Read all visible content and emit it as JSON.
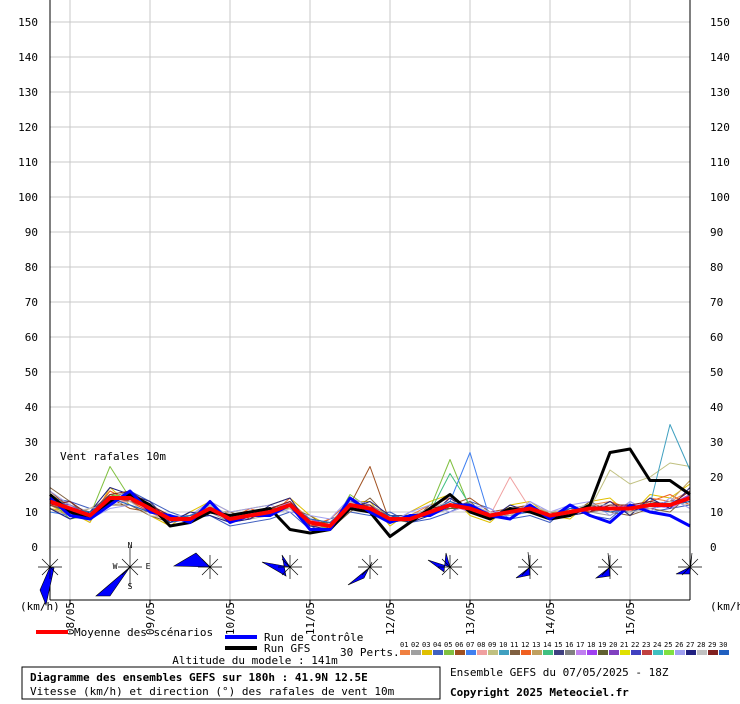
{
  "chart_data": {
    "type": "line",
    "annotation": "Vent rafales 10m",
    "y_unit_left": "(km/h)",
    "y_unit_right": "(km/h)",
    "compass": [
      "N",
      "W",
      "E",
      "S"
    ],
    "x": [
      0,
      6,
      12,
      18,
      24,
      30,
      36,
      42,
      48,
      54,
      60,
      66,
      72,
      78,
      84,
      90,
      96,
      102,
      108,
      114,
      120,
      126,
      132,
      138,
      144,
      150,
      156,
      162,
      168,
      174,
      180,
      186,
      192
    ],
    "xlim": [
      0,
      192
    ],
    "xticks": [
      {
        "value": 6,
        "label": "08/05"
      },
      {
        "value": 30,
        "label": "09/05"
      },
      {
        "value": 54,
        "label": "10/05"
      },
      {
        "value": 78,
        "label": "11/05"
      },
      {
        "value": 102,
        "label": "12/05"
      },
      {
        "value": 126,
        "label": "13/05"
      },
      {
        "value": 150,
        "label": "14/05"
      },
      {
        "value": 174,
        "label": "15/05"
      }
    ],
    "ylim": [
      0,
      150
    ],
    "yticks": [
      0,
      10,
      20,
      30,
      40,
      50,
      60,
      70,
      80,
      90,
      100,
      110,
      120,
      130,
      140,
      150
    ],
    "grid": true,
    "perts_label": "30 Perts.",
    "altitude": "Altitude du modele : 141m",
    "box_title": "Diagramme des ensembles GEFS sur 180h : 41.9N 12.5E",
    "box_subtitle": "Vitesse (km/h) et direction (°) des rafales de vent 10m",
    "run_info": "Ensemble GEFS du 07/05/2025 - 18Z",
    "copyright": "Copyright 2025 Meteociel.fr",
    "series": [
      {
        "name": "01",
        "color": "#f08040",
        "values": [
          12,
          9,
          8,
          16,
          13,
          10,
          7,
          9,
          12,
          9,
          10,
          11,
          13,
          8,
          5,
          14,
          12,
          7,
          9,
          12,
          14,
          10,
          8,
          11,
          12,
          10,
          9,
          12,
          13,
          10,
          14,
          13,
          16
        ]
      },
      {
        "name": "02",
        "color": "#a0a0a0",
        "values": [
          15,
          12,
          10,
          13,
          15,
          12,
          9,
          7,
          10,
          7,
          8,
          9,
          11,
          6,
          7,
          11,
          10,
          9,
          8,
          9,
          11,
          12,
          10,
          9,
          10,
          8,
          11,
          10,
          9,
          12,
          11,
          12,
          13
        ]
      },
      {
        "name": "03",
        "color": "#e0c000",
        "values": [
          11,
          10,
          7,
          17,
          12,
          9,
          6,
          10,
          13,
          10,
          11,
          12,
          14,
          9,
          6,
          13,
          13,
          6,
          10,
          13,
          15,
          9,
          7,
          12,
          13,
          9,
          8,
          13,
          14,
          9,
          15,
          14,
          18
        ]
      },
      {
        "name": "04",
        "color": "#4060c0",
        "values": [
          14,
          13,
          11,
          12,
          16,
          13,
          10,
          8,
          9,
          6,
          7,
          8,
          10,
          5,
          8,
          10,
          9,
          10,
          7,
          8,
          10,
          13,
          11,
          8,
          9,
          7,
          12,
          9,
          8,
          13,
          10,
          11,
          12
        ]
      },
      {
        "name": "05",
        "color": "#80c040",
        "values": [
          13,
          8,
          9,
          23,
          14,
          11,
          7,
          9,
          11,
          8,
          9,
          10,
          12,
          7,
          5,
          15,
          11,
          8,
          9,
          11,
          25,
          11,
          9,
          10,
          11,
          9,
          10,
          11,
          12,
          11,
          13,
          12,
          15
        ]
      },
      {
        "name": "06",
        "color": "#a05020",
        "values": [
          16,
          11,
          8,
          14,
          11,
          10,
          9,
          8,
          12,
          9,
          10,
          9,
          13,
          6,
          6,
          12,
          23,
          7,
          8,
          10,
          12,
          14,
          10,
          11,
          12,
          10,
          9,
          10,
          11,
          12,
          12,
          13,
          14
        ]
      },
      {
        "name": "07",
        "color": "#4080f0",
        "values": [
          10,
          9,
          10,
          15,
          14,
          12,
          8,
          7,
          10,
          8,
          9,
          11,
          11,
          8,
          7,
          11,
          12,
          9,
          9,
          11,
          13,
          27,
          8,
          9,
          10,
          8,
          11,
          12,
          10,
          10,
          11,
          12,
          13
        ]
      },
      {
        "name": "08",
        "color": "#f0a0a0",
        "values": [
          12,
          12,
          9,
          13,
          13,
          11,
          8,
          8,
          11,
          8,
          10,
          10,
          12,
          7,
          6,
          12,
          11,
          8,
          8,
          10,
          12,
          11,
          9,
          20,
          11,
          9,
          10,
          11,
          11,
          11,
          12,
          12,
          14
        ]
      },
      {
        "name": "09",
        "color": "#c0c080",
        "values": [
          14,
          10,
          9,
          14,
          15,
          12,
          9,
          9,
          12,
          9,
          9,
          10,
          12,
          8,
          7,
          13,
          11,
          8,
          9,
          10,
          12,
          11,
          9,
          10,
          11,
          9,
          10,
          11,
          22,
          18,
          20,
          24,
          23
        ]
      },
      {
        "name": "10",
        "color": "#40a0c0",
        "values": [
          13,
          11,
          10,
          15,
          14,
          11,
          8,
          8,
          11,
          8,
          9,
          10,
          12,
          7,
          6,
          12,
          11,
          8,
          8,
          10,
          12,
          11,
          9,
          10,
          11,
          9,
          10,
          11,
          11,
          11,
          12,
          35,
          22
        ]
      },
      {
        "name": "11",
        "color": "#806040",
        "values": [
          17,
          13,
          8,
          12,
          12,
          9,
          7,
          9,
          10,
          10,
          8,
          11,
          11,
          9,
          5,
          10,
          14,
          8,
          7,
          12,
          11,
          13,
          8,
          12,
          10,
          10,
          9,
          13,
          10,
          9,
          11,
          10,
          15
        ]
      },
      {
        "name": "12",
        "color": "#f06020",
        "values": [
          12,
          10,
          9,
          16,
          13,
          10,
          9,
          7,
          12,
          8,
          11,
          9,
          14,
          6,
          8,
          13,
          10,
          7,
          9,
          9,
          14,
          10,
          10,
          9,
          12,
          8,
          11,
          10,
          13,
          11,
          13,
          15,
          12
        ]
      },
      {
        "name": "13",
        "color": "#c0a060",
        "values": [
          11,
          9,
          11,
          14,
          15,
          12,
          8,
          8,
          11,
          7,
          9,
          10,
          13,
          7,
          6,
          12,
          12,
          9,
          8,
          11,
          12,
          11,
          9,
          11,
          11,
          10,
          10,
          11,
          12,
          12,
          12,
          13,
          19
        ]
      },
      {
        "name": "14",
        "color": "#40c080",
        "values": [
          13,
          12,
          9,
          13,
          14,
          11,
          7,
          9,
          10,
          8,
          10,
          11,
          12,
          8,
          7,
          11,
          11,
          8,
          8,
          10,
          21,
          12,
          9,
          10,
          11,
          9,
          10,
          11,
          11,
          11,
          12,
          12,
          14
        ]
      },
      {
        "name": "15",
        "color": "#404080",
        "values": [
          14,
          11,
          10,
          15,
          13,
          12,
          8,
          8,
          12,
          9,
          9,
          10,
          11,
          7,
          6,
          13,
          11,
          9,
          9,
          10,
          12,
          11,
          8,
          10,
          12,
          9,
          11,
          12,
          11,
          10,
          12,
          12,
          13
        ]
      },
      {
        "name": "16",
        "color": "#808080",
        "values": [
          12,
          10,
          9,
          14,
          16,
          11,
          9,
          8,
          11,
          8,
          10,
          9,
          12,
          7,
          7,
          12,
          10,
          8,
          8,
          11,
          13,
          11,
          9,
          9,
          11,
          9,
          10,
          10,
          11,
          11,
          13,
          12,
          14
        ]
      },
      {
        "name": "17",
        "color": "#c080f0",
        "values": [
          13,
          11,
          8,
          13,
          14,
          10,
          8,
          9,
          11,
          9,
          9,
          10,
          13,
          7,
          6,
          12,
          11,
          8,
          9,
          10,
          12,
          10,
          9,
          10,
          10,
          9,
          10,
          11,
          12,
          11,
          12,
          11,
          14
        ]
      },
      {
        "name": "18",
        "color": "#a040f0",
        "values": [
          15,
          11,
          9,
          14,
          14,
          11,
          8,
          8,
          10,
          8,
          9,
          10,
          12,
          8,
          6,
          11,
          11,
          7,
          8,
          10,
          12,
          11,
          9,
          10,
          11,
          8,
          10,
          11,
          11,
          12,
          12,
          12,
          15
        ]
      },
      {
        "name": "19",
        "color": "#606030",
        "values": [
          12,
          10,
          9,
          15,
          13,
          11,
          9,
          8,
          11,
          8,
          9,
          11,
          12,
          7,
          7,
          12,
          11,
          8,
          8,
          10,
          11,
          11,
          9,
          11,
          11,
          9,
          10,
          12,
          11,
          11,
          12,
          12,
          13
        ]
      },
      {
        "name": "20",
        "color": "#8040c0",
        "values": [
          13,
          12,
          9,
          14,
          14,
          12,
          8,
          8,
          11,
          8,
          9,
          10,
          12,
          7,
          6,
          12,
          12,
          8,
          8,
          10,
          12,
          11,
          10,
          10,
          11,
          9,
          9,
          11,
          11,
          11,
          11,
          12,
          14
        ]
      },
      {
        "name": "21",
        "color": "#e0e000",
        "values": [
          14,
          11,
          10,
          13,
          15,
          11,
          8,
          8,
          11,
          8,
          10,
          10,
          11,
          7,
          6,
          12,
          11,
          8,
          8,
          10,
          12,
          11,
          9,
          10,
          11,
          9,
          10,
          11,
          10,
          11,
          12,
          12,
          14
        ]
      },
      {
        "name": "22",
        "color": "#4040c0",
        "values": [
          13,
          10,
          9,
          14,
          14,
          11,
          7,
          8,
          11,
          8,
          9,
          10,
          12,
          7,
          6,
          13,
          11,
          8,
          8,
          10,
          12,
          12,
          9,
          10,
          11,
          9,
          10,
          11,
          11,
          11,
          12,
          13,
          14
        ]
      },
      {
        "name": "23",
        "color": "#c04040",
        "values": [
          12,
          11,
          9,
          14,
          13,
          11,
          8,
          9,
          11,
          8,
          9,
          10,
          12,
          6,
          6,
          12,
          11,
          8,
          9,
          10,
          12,
          11,
          9,
          10,
          12,
          9,
          10,
          11,
          11,
          11,
          12,
          12,
          14
        ]
      },
      {
        "name": "24",
        "color": "#40c0c0",
        "values": [
          13,
          11,
          8,
          14,
          14,
          11,
          8,
          8,
          12,
          8,
          9,
          10,
          12,
          7,
          6,
          12,
          11,
          8,
          8,
          10,
          12,
          11,
          9,
          10,
          11,
          9,
          10,
          11,
          11,
          11,
          12,
          12,
          14
        ]
      },
      {
        "name": "25",
        "color": "#80e040",
        "values": [
          13,
          11,
          9,
          15,
          14,
          11,
          8,
          8,
          11,
          8,
          9,
          10,
          12,
          7,
          6,
          12,
          11,
          8,
          8,
          10,
          12,
          11,
          9,
          10,
          11,
          9,
          10,
          11,
          11,
          11,
          12,
          12,
          14
        ]
      },
      {
        "name": "26",
        "color": "#a0a0f0",
        "values": [
          16,
          12,
          8,
          11,
          12,
          10,
          9,
          9,
          13,
          10,
          11,
          12,
          10,
          9,
          8,
          14,
          12,
          7,
          10,
          12,
          10,
          12,
          11,
          8,
          13,
          10,
          12,
          13,
          9,
          13,
          10,
          14,
          11
        ]
      },
      {
        "name": "27",
        "color": "#202080",
        "values": [
          11,
          8,
          10,
          17,
          15,
          13,
          7,
          10,
          9,
          7,
          8,
          12,
          14,
          6,
          5,
          11,
          13,
          9,
          7,
          9,
          14,
          10,
          8,
          12,
          10,
          8,
          9,
          10,
          13,
          9,
          14,
          11,
          17
        ]
      },
      {
        "name": "28",
        "color": "#c0c0c0",
        "values": [
          14,
          10,
          11,
          12,
          13,
          9,
          8,
          7,
          12,
          9,
          10,
          9,
          11,
          8,
          7,
          13,
          10,
          8,
          9,
          11,
          13,
          12,
          10,
          9,
          12,
          10,
          11,
          12,
          12,
          10,
          11,
          13,
          12
        ]
      },
      {
        "name": "29",
        "color": "#802020",
        "values": [
          12,
          13,
          9,
          15,
          16,
          12,
          9,
          8,
          10,
          8,
          9,
          11,
          13,
          7,
          6,
          12,
          12,
          7,
          8,
          11,
          12,
          11,
          8,
          11,
          11,
          9,
          10,
          10,
          12,
          12,
          13,
          12,
          16
        ]
      },
      {
        "name": "30",
        "color": "#2060c0",
        "values": [
          15,
          11,
          10,
          14,
          12,
          10,
          8,
          9,
          11,
          9,
          10,
          10,
          12,
          8,
          7,
          12,
          11,
          9,
          8,
          10,
          13,
          11,
          9,
          10,
          10,
          9,
          11,
          11,
          10,
          11,
          12,
          12,
          13
        ]
      },
      {
        "name": "Run GFS",
        "color": "#000000",
        "width": 3,
        "values": [
          15,
          10,
          8,
          13,
          15,
          12,
          6,
          7,
          10,
          9,
          10,
          11,
          5,
          4,
          5,
          11,
          10,
          3,
          7,
          11,
          15,
          10,
          8,
          11,
          10,
          8,
          9,
          12,
          27,
          28,
          19,
          19,
          15
        ]
      },
      {
        "name": "Run de contrôle",
        "color": "#0000ff",
        "width": 3,
        "values": [
          14,
          9,
          8,
          12,
          16,
          10,
          9,
          7,
          13,
          7,
          9,
          9,
          12,
          5,
          5,
          14,
          10,
          7,
          9,
          9,
          12,
          12,
          9,
          8,
          12,
          8,
          12,
          9,
          7,
          12,
          10,
          9,
          6
        ]
      },
      {
        "name": "Moyenne des scénarios",
        "color": "#ff0000",
        "width": 4,
        "values": [
          13,
          11,
          9,
          14,
          14,
          11,
          8,
          8,
          11,
          8,
          9,
          10,
          12,
          7,
          6,
          12,
          11,
          8,
          8,
          10,
          12,
          11,
          9,
          10,
          11,
          9,
          10,
          11,
          11,
          11,
          12,
          12,
          14
        ]
      }
    ]
  }
}
